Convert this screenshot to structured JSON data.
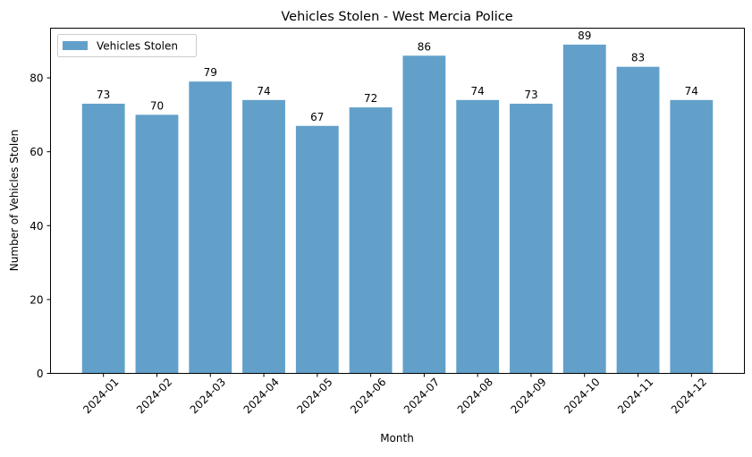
{
  "chart_data": {
    "type": "bar",
    "title": "Vehicles Stolen - West Mercia Police",
    "xlabel": "Month",
    "ylabel": "Number of Vehicles Stolen",
    "categories": [
      "2024-01",
      "2024-02",
      "2024-03",
      "2024-04",
      "2024-05",
      "2024-06",
      "2024-07",
      "2024-08",
      "2024-09",
      "2024-10",
      "2024-11",
      "2024-12"
    ],
    "series": [
      {
        "name": "Vehicles Stolen",
        "values": [
          73,
          70,
          79,
          74,
          67,
          72,
          86,
          74,
          73,
          89,
          83,
          74
        ],
        "color": "#62a0ca"
      }
    ],
    "ylim": [
      0,
      93.45
    ],
    "yticks": [
      0,
      20,
      40,
      60,
      80
    ],
    "grid": false,
    "legend": "top-left",
    "data_labels": true
  }
}
